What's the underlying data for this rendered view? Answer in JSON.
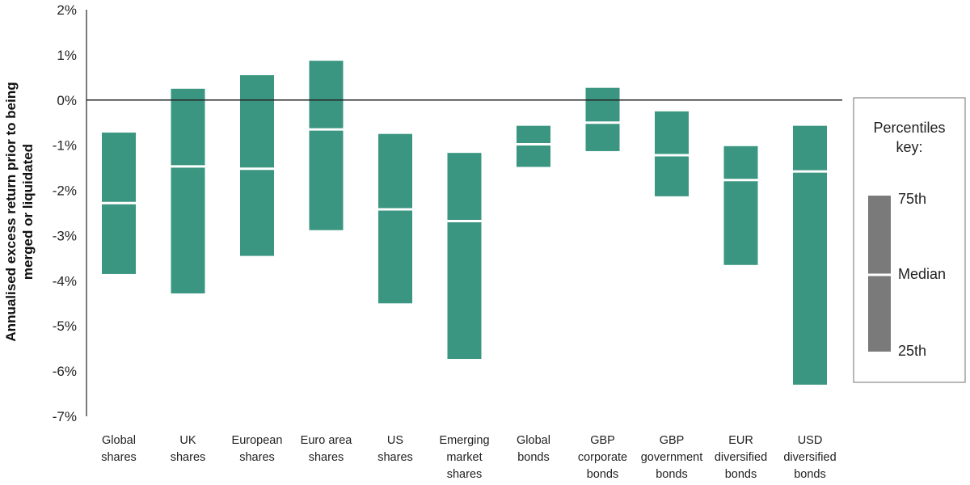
{
  "chart_data": {
    "type": "bar",
    "subtype": "floating-range",
    "ylabel_lines": [
      "Annualised excess return prior to being",
      "merged or liquidated"
    ],
    "ylim": [
      -7,
      2
    ],
    "yticks": [
      2,
      1,
      0,
      -1,
      -2,
      -3,
      -4,
      -5,
      -6,
      -7
    ],
    "ytick_labels": [
      "2%",
      "1%",
      "0%",
      "-1%",
      "-2%",
      "-3%",
      "-4%",
      "-5%",
      "-6%",
      "-7%"
    ],
    "categories": [
      [
        "Global",
        "shares"
      ],
      [
        "UK",
        "shares"
      ],
      [
        "European",
        "shares"
      ],
      [
        "Euro area",
        "shares"
      ],
      [
        "US",
        "shares"
      ],
      [
        "Emerging",
        "market",
        "shares"
      ],
      [
        "Global",
        "bonds"
      ],
      [
        "GBP",
        "corporate",
        "bonds"
      ],
      [
        "GBP",
        "government",
        "bonds"
      ],
      [
        "EUR",
        "diversified",
        "bonds"
      ],
      [
        "USD",
        "diversified",
        "bonds"
      ]
    ],
    "series": [
      {
        "name": "75th",
        "values": [
          -0.72,
          0.25,
          0.55,
          0.87,
          -0.75,
          -1.17,
          -0.57,
          0.27,
          -0.25,
          -1.02,
          -0.57
        ]
      },
      {
        "name": "Median",
        "values": [
          -2.28,
          -1.47,
          -1.52,
          -0.65,
          -2.42,
          -2.68,
          -0.98,
          -0.5,
          -1.22,
          -1.77,
          -1.58
        ]
      },
      {
        "name": "25th",
        "values": [
          -3.85,
          -4.28,
          -3.45,
          -2.88,
          -4.5,
          -5.73,
          -1.48,
          -1.13,
          -2.13,
          -3.65,
          -6.3
        ]
      }
    ],
    "bar_color": "#3a9680",
    "median_line_color": "#ffffff",
    "grid": false,
    "zero_line": true
  },
  "legend": {
    "title_lines": [
      "Percentiles",
      "key:"
    ],
    "top_label": "75th",
    "middle_label": "Median",
    "bottom_label": "25th",
    "swatch_color": "#7a7a7a"
  }
}
